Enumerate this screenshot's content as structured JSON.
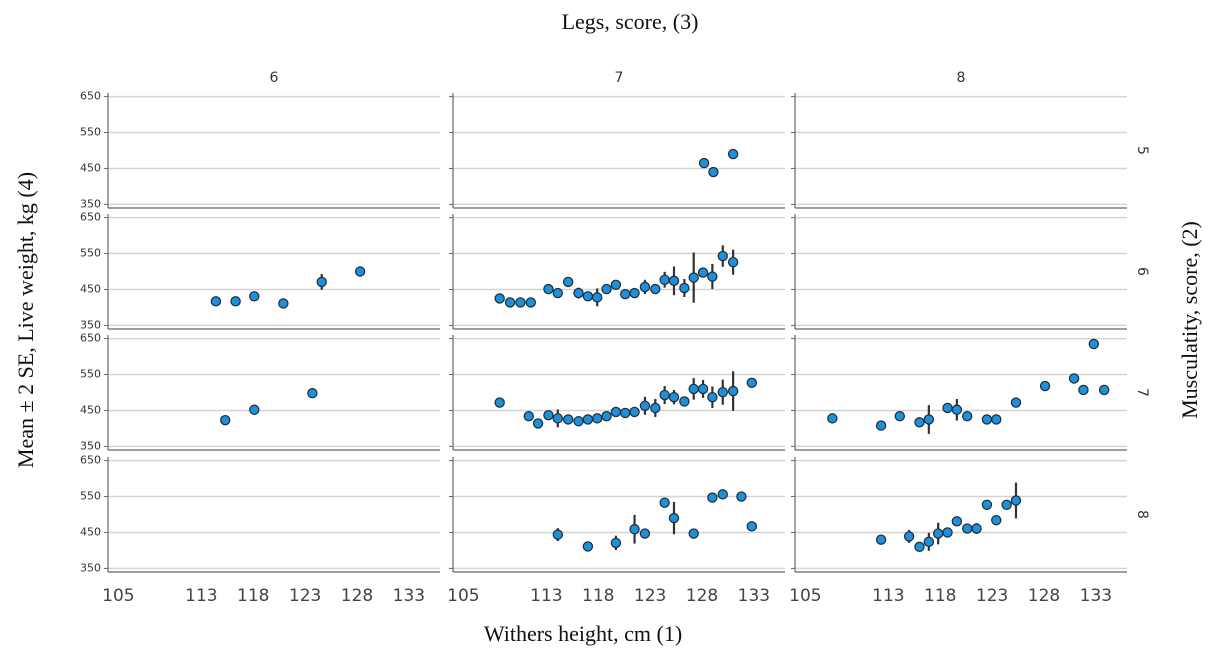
{
  "chart_data": {
    "type": "scatter",
    "title": "Legs, score, (3)",
    "x_label": "Withers height, cm (1)",
    "y_label": "Mean ± 2 SE, Live weight, kg (4)",
    "row_label": "Musculatity, score, (2)",
    "columns": [
      "6",
      "7",
      "8"
    ],
    "rows": [
      "5",
      "6",
      "7",
      "8"
    ],
    "color": "#1f8fd8",
    "xlim": [
      104,
      136
    ],
    "xticks": [
      105,
      113,
      118,
      123,
      128,
      133
    ],
    "ylim": [
      340,
      660
    ],
    "yticks": [
      350,
      450,
      550,
      650
    ],
    "grid": true,
    "panels": [
      [
        {
          "x": [],
          "values": [],
          "errors": []
        },
        {
          "x": [
            128.2,
            129.1,
            131.0
          ],
          "values": [
            465,
            440,
            490
          ],
          "errors": [
            null,
            null,
            null
          ]
        },
        {
          "x": [],
          "values": [],
          "errors": []
        }
      ],
      [
        {
          "x": [
            114.4,
            116.3,
            118.1,
            120.9,
            124.6,
            128.3
          ],
          "values": [
            417,
            417,
            431,
            411,
            471,
            500
          ],
          "errors": [
            null,
            null,
            null,
            null,
            22,
            null
          ]
        },
        {
          "x": [
            108.5,
            109.5,
            110.5,
            111.5,
            113.2,
            114.1,
            115.1,
            116.1,
            117.0,
            117.9,
            118.8,
            119.7,
            120.6,
            121.5,
            122.5,
            123.5,
            124.4,
            125.3,
            126.3,
            127.2,
            128.1,
            129.0,
            130.0,
            131.0
          ],
          "values": [
            425,
            414,
            414,
            414,
            451,
            440,
            471,
            440,
            431,
            428,
            451,
            463,
            437,
            440,
            457,
            451,
            477,
            474,
            454,
            483,
            497,
            486,
            543,
            526
          ],
          "errors": [
            null,
            null,
            null,
            null,
            null,
            null,
            null,
            15,
            null,
            25,
            null,
            null,
            null,
            null,
            20,
            null,
            22,
            40,
            25,
            70,
            null,
            35,
            30,
            35
          ]
        },
        {
          "x": [],
          "values": [],
          "errors": []
        }
      ],
      [
        {
          "x": [
            115.3,
            118.1,
            123.7
          ],
          "values": [
            423,
            452,
            498
          ],
          "errors": [
            null,
            null,
            null
          ]
        },
        {
          "x": [
            108.5,
            111.3,
            112.2,
            113.2,
            114.1,
            115.1,
            116.1,
            117.0,
            117.9,
            118.8,
            119.7,
            120.6,
            121.5,
            122.5,
            123.5,
            124.4,
            125.3,
            126.3,
            127.2,
            128.1,
            129.0,
            130.0,
            131.0,
            132.8
          ],
          "values": [
            472,
            434,
            414,
            437,
            428,
            425,
            420,
            425,
            428,
            434,
            446,
            443,
            446,
            463,
            457,
            493,
            487,
            475,
            510,
            510,
            487,
            501,
            504,
            527
          ],
          "errors": [
            null,
            null,
            null,
            null,
            25,
            null,
            null,
            null,
            null,
            null,
            null,
            null,
            null,
            25,
            25,
            25,
            20,
            null,
            30,
            25,
            30,
            35,
            55,
            null
          ]
        },
        {
          "x": [
            107.6,
            112.3,
            114.1,
            116.0,
            116.9,
            118.7,
            119.6,
            120.6,
            122.5,
            123.4,
            125.3,
            128.1,
            130.9,
            131.8,
            132.8,
            133.8
          ],
          "values": [
            428,
            408,
            434,
            417,
            425,
            457,
            452,
            434,
            425,
            425,
            472,
            518,
            539,
            507,
            635,
            507
          ],
          "errors": [
            null,
            null,
            null,
            null,
            40,
            null,
            30,
            null,
            null,
            null,
            null,
            null,
            null,
            null,
            null,
            null
          ]
        }
      ],
      [
        {
          "x": [],
          "values": [],
          "errors": []
        },
        {
          "x": [
            114.1,
            117.0,
            119.7,
            121.5,
            122.5,
            124.4,
            125.3,
            127.2,
            129.0,
            130.0,
            131.8,
            132.8
          ],
          "values": [
            444,
            411,
            421,
            459,
            447,
            533,
            490,
            447,
            547,
            556,
            550,
            467
          ],
          "errors": [
            18,
            null,
            20,
            40,
            null,
            null,
            45,
            null,
            null,
            null,
            null,
            null
          ]
        },
        {
          "x": [
            112.3,
            115.0,
            116.0,
            116.9,
            117.8,
            118.7,
            119.6,
            120.6,
            121.5,
            122.5,
            123.4,
            124.4,
            125.3
          ],
          "values": [
            430,
            439,
            410,
            424,
            447,
            450,
            481,
            461,
            461,
            527,
            484,
            527,
            539
          ],
          "errors": [
            null,
            18,
            null,
            25,
            30,
            null,
            null,
            null,
            15,
            null,
            null,
            null,
            50
          ]
        }
      ]
    ]
  }
}
